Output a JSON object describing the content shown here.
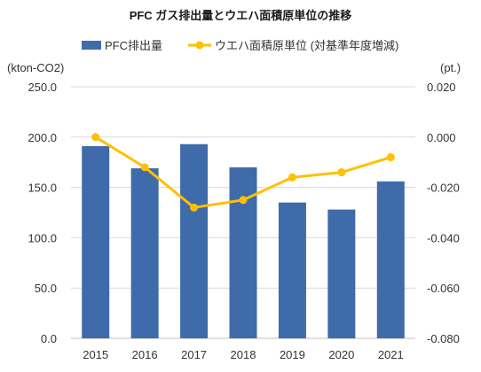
{
  "chart_data": {
    "type": "bar+line",
    "title": "PFC ガス排出量とウエハ面積原単位の推移",
    "categories": [
      "2015",
      "2016",
      "2017",
      "2018",
      "2019",
      "2020",
      "2021"
    ],
    "series": [
      {
        "name": "PFC排出量",
        "type": "bar",
        "axis": "left",
        "color": "#3f6bab",
        "values": [
          191,
          169,
          193,
          170,
          135,
          128,
          156
        ]
      },
      {
        "name": "ウエハ面積原単位 (対基準年度増減)",
        "type": "line",
        "axis": "right",
        "color": "#ffc000",
        "values": [
          0.0,
          -0.012,
          -0.028,
          -0.025,
          -0.016,
          -0.014,
          -0.008
        ]
      }
    ],
    "left_axis": {
      "unit": "(kton-CO2)",
      "min": 0,
      "max": 250,
      "step": 50,
      "ticks": [
        "0.0",
        "50.0",
        "100.0",
        "150.0",
        "200.0",
        "250.0"
      ]
    },
    "right_axis": {
      "unit": "(pt.)",
      "min": -0.08,
      "max": 0.02,
      "step": 0.02,
      "ticks": [
        "-0.080",
        "-0.060",
        "-0.040",
        "-0.020",
        "0.000",
        "0.020"
      ]
    },
    "grid": true,
    "legend_position": "top"
  }
}
